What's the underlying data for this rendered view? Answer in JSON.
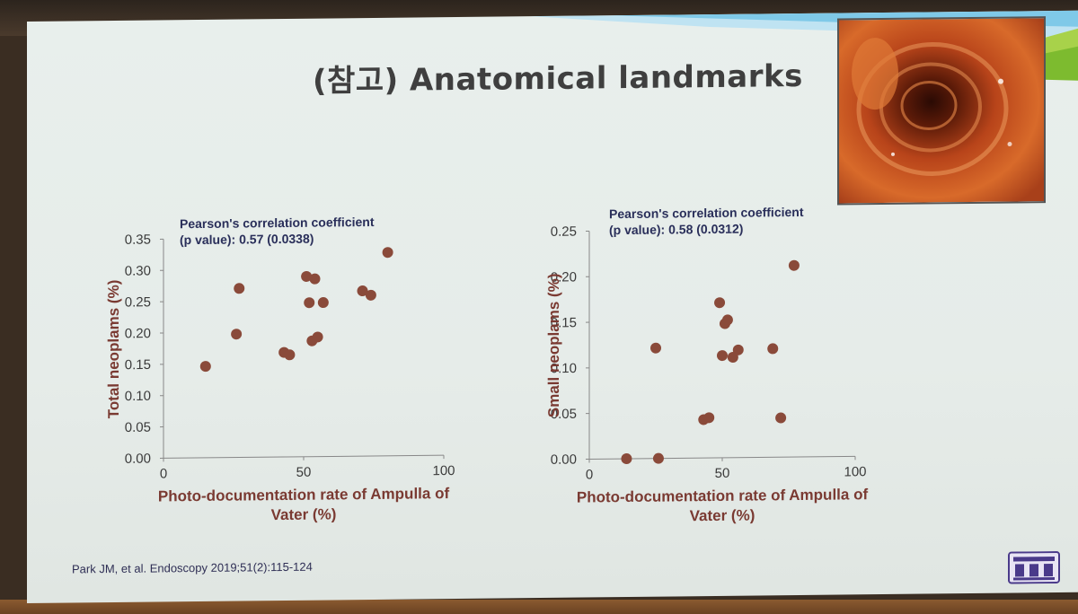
{
  "slide": {
    "title": "(참고) Anatomical landmarks",
    "citation": "Park JM, et al. Endoscopy 2019;51(2):115-124"
  },
  "colors": {
    "marker": "#8a4a3a",
    "axis_label": "#7a3a32",
    "axis": "#888888",
    "text": "#3a3a3a"
  },
  "chart_data": [
    {
      "type": "scatter",
      "annotation_line1": "Pearson's correlation coefficient",
      "annotation_line2": "(p value): 0.57 (0.0338)",
      "xlabel_line1": "Photo-documentation rate of Ampulla of",
      "xlabel_line2": "Vater (%)",
      "ylabel": "Total neoplams (%)",
      "xlim": [
        0,
        100
      ],
      "ylim": [
        0,
        0.35
      ],
      "xticks": [
        "0",
        "50",
        "100"
      ],
      "yticks": [
        "0.00",
        "0.05",
        "0.10",
        "0.15",
        "0.20",
        "0.25",
        "0.30",
        "0.35"
      ],
      "points": [
        [
          15,
          0.146
        ],
        [
          26,
          0.197
        ],
        [
          27,
          0.27
        ],
        [
          43,
          0.167
        ],
        [
          45,
          0.163
        ],
        [
          51,
          0.288
        ],
        [
          52,
          0.246
        ],
        [
          53,
          0.185
        ],
        [
          54,
          0.284
        ],
        [
          55,
          0.191
        ],
        [
          57,
          0.246
        ],
        [
          71,
          0.264
        ],
        [
          74,
          0.257
        ],
        [
          80,
          0.325
        ]
      ]
    },
    {
      "type": "scatter",
      "annotation_line1": "Pearson's correlation coefficient",
      "annotation_line2": "(p value): 0.58 (0.0312)",
      "xlabel_line1": "Photo-documentation rate of Ampulla of",
      "xlabel_line2": "Vater (%)",
      "ylabel": "Small neoplams (%)",
      "xlim": [
        0,
        100
      ],
      "ylim": [
        0,
        0.25
      ],
      "xticks": [
        "0",
        "50",
        "100"
      ],
      "yticks": [
        "0.00",
        "0.05",
        "0.10",
        "0.15",
        "0.20",
        "0.25"
      ],
      "points": [
        [
          14,
          0.0
        ],
        [
          25,
          0.121
        ],
        [
          26,
          0.0
        ],
        [
          43,
          0.042
        ],
        [
          45,
          0.044
        ],
        [
          49,
          0.17
        ],
        [
          50,
          0.112
        ],
        [
          51,
          0.147
        ],
        [
          52,
          0.151
        ],
        [
          54,
          0.11
        ],
        [
          56,
          0.118
        ],
        [
          69,
          0.119
        ],
        [
          72,
          0.043
        ],
        [
          77,
          0.21
        ]
      ]
    }
  ]
}
